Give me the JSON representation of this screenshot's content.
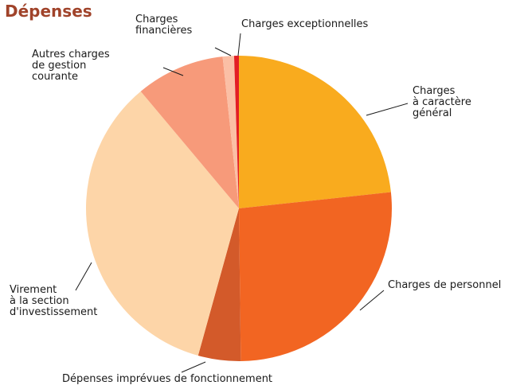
{
  "chart_data": {
    "type": "pie",
    "title": "Dépenses",
    "categories": [
      "Charges\nà caractère\ngénéral",
      "Charges de personnel",
      "Dépenses imprévues de fonctionnement",
      "Virement\nà la section\nd'investissement",
      "Autres charges\nde gestion\ncourante",
      "Charges\nfinancières",
      "Charges exceptionnelles"
    ],
    "values": [
      23.3,
      26.5,
      4.5,
      34.6,
      9.4,
      1.2,
      0.5
    ],
    "colors": [
      "#f9ab1e",
      "#f26522",
      "#d35a2a",
      "#fdd5a8",
      "#f79a7a",
      "#fbbfa5",
      "#e31e24"
    ]
  }
}
